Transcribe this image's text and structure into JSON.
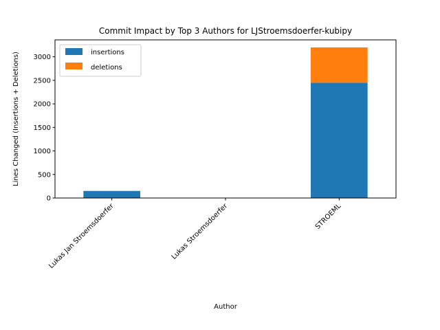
{
  "chart_data": {
    "type": "bar",
    "stacked": true,
    "title": "Commit Impact by Top 3 Authors for LJStroemsdoerfer-kubipy",
    "xlabel": "Author",
    "ylabel": "Lines Changed (Insertions + Deletions)",
    "categories": [
      "Lukas Jan Stroemsdoerfer",
      "Lukas Stroemsdoerfer",
      "STROEML"
    ],
    "series": [
      {
        "name": "insertions",
        "color": "#1f77b4",
        "values": [
          150,
          0,
          2450
        ]
      },
      {
        "name": "deletions",
        "color": "#ff7f0e",
        "values": [
          0,
          0,
          750
        ]
      }
    ],
    "ylim": [
      0,
      3360
    ],
    "yticks": [
      0,
      500,
      1000,
      1500,
      2000,
      2500,
      3000
    ],
    "grid": false,
    "legend_position": "upper-left"
  }
}
